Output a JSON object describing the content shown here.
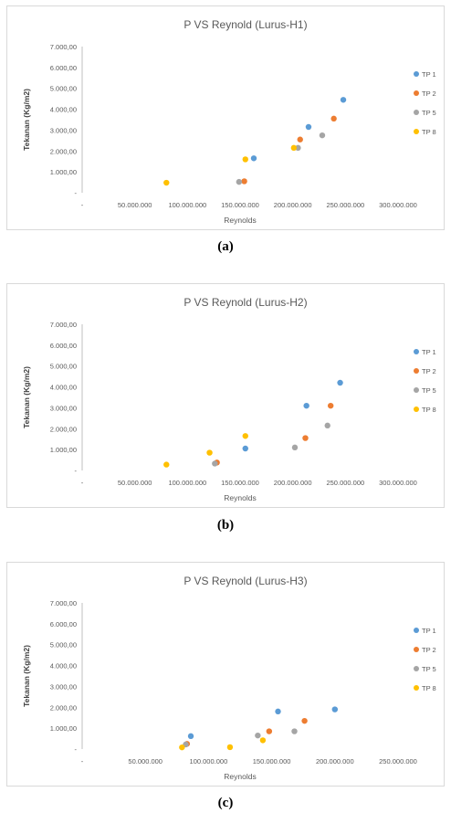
{
  "figure": {
    "captions": [
      "(a)",
      "(b)",
      "(c)"
    ]
  },
  "chart_data": [
    {
      "type": "scatter",
      "title": "P VS Reynold (Lurus-H1)",
      "xlabel": "Reynolds",
      "ylabel": "Tekanan (Kg/m2)",
      "xlim": [
        0,
        300000000
      ],
      "ylim": [
        0,
        7000
      ],
      "xticks": [
        0,
        50000000,
        100000000,
        150000000,
        200000000,
        250000000,
        300000000
      ],
      "xtick_labels": [
        "-",
        "50.000.000",
        "100.000.000",
        "150.000.000",
        "200.000.000",
        "250.000.000",
        "300.000.000"
      ],
      "yticks": [
        0,
        1000,
        2000,
        3000,
        4000,
        5000,
        6000,
        7000
      ],
      "ytick_labels": [
        "-",
        "1.000,00",
        "2.000,00",
        "3.000,00",
        "4.000,00",
        "5.000,00",
        "6.000,00",
        "7.000,00"
      ],
      "grid": false,
      "legend": "right",
      "series": [
        {
          "name": "TP 1",
          "color": "#5b9bd5",
          "points": [
            [
              163000000,
              1650
            ],
            [
              215000000,
              3150
            ],
            [
              248000000,
              4450
            ]
          ]
        },
        {
          "name": "TP 2",
          "color": "#ed7d31",
          "points": [
            [
              154000000,
              550
            ],
            [
              207000000,
              2550
            ],
            [
              239000000,
              3550
            ]
          ]
        },
        {
          "name": "TP 5",
          "color": "#a5a5a5",
          "points": [
            [
              149000000,
              520
            ],
            [
              205000000,
              2150
            ],
            [
              228000000,
              2750
            ]
          ]
        },
        {
          "name": "TP 8",
          "color": "#ffc000",
          "points": [
            [
              80000000,
              480
            ],
            [
              155000000,
              1600
            ],
            [
              201000000,
              2150
            ]
          ]
        }
      ]
    },
    {
      "type": "scatter",
      "title": "P VS Reynold (Lurus-H2)",
      "xlabel": "Reynolds",
      "ylabel": "Tekanan (Kg/m2)",
      "xlim": [
        0,
        300000000
      ],
      "ylim": [
        0,
        7000
      ],
      "xticks": [
        0,
        50000000,
        100000000,
        150000000,
        200000000,
        250000000,
        300000000
      ],
      "xtick_labels": [
        "-",
        "50.000.000",
        "100.000.000",
        "150.000.000",
        "200.000.000",
        "250.000.000",
        "300.000.000"
      ],
      "yticks": [
        0,
        1000,
        2000,
        3000,
        4000,
        5000,
        6000,
        7000
      ],
      "ytick_labels": [
        "-",
        "1.000,00",
        "2.000,00",
        "3.000,00",
        "4.000,00",
        "5.000,00",
        "6.000,00",
        "7.000,00"
      ],
      "grid": false,
      "legend": "right",
      "series": [
        {
          "name": "TP 1",
          "color": "#5b9bd5",
          "points": [
            [
              155000000,
              1050
            ],
            [
              213000000,
              3100
            ],
            [
              245000000,
              4200
            ]
          ]
        },
        {
          "name": "TP 2",
          "color": "#ed7d31",
          "points": [
            [
              128000000,
              380
            ],
            [
              212000000,
              1550
            ],
            [
              236000000,
              3100
            ]
          ]
        },
        {
          "name": "TP 5",
          "color": "#a5a5a5",
          "points": [
            [
              126000000,
              330
            ],
            [
              202000000,
              1100
            ],
            [
              233000000,
              2150
            ]
          ]
        },
        {
          "name": "TP 8",
          "color": "#ffc000",
          "points": [
            [
              80000000,
              280
            ],
            [
              121000000,
              850
            ],
            [
              155000000,
              1650
            ]
          ]
        }
      ]
    },
    {
      "type": "scatter",
      "title": "P VS Reynold (Lurus-H3)",
      "xlabel": "Reynolds",
      "ylabel": "Tekanan (Kg/m2)",
      "xlim": [
        0,
        250000000
      ],
      "ylim": [
        0,
        7000
      ],
      "xticks": [
        0,
        50000000,
        100000000,
        150000000,
        200000000,
        250000000
      ],
      "xtick_labels": [
        "-",
        "50.000.000",
        "100.000.000",
        "150.000.000",
        "200.000.000",
        "250.000.000"
      ],
      "yticks": [
        0,
        1000,
        2000,
        3000,
        4000,
        5000,
        6000,
        7000
      ],
      "ytick_labels": [
        "-",
        "1.000,00",
        "2.000,00",
        "3.000,00",
        "4.000,00",
        "5.000,00",
        "6.000,00",
        "7.000,00"
      ],
      "grid": false,
      "legend": "right",
      "series": [
        {
          "name": "TP 1",
          "color": "#5b9bd5",
          "points": [
            [
              86000000,
              620
            ],
            [
              155000000,
              1800
            ],
            [
              200000000,
              1900
            ]
          ]
        },
        {
          "name": "TP 2",
          "color": "#ed7d31",
          "points": [
            [
              83000000,
              250
            ],
            [
              148000000,
              850
            ],
            [
              176000000,
              1350
            ]
          ]
        },
        {
          "name": "TP 5",
          "color": "#a5a5a5",
          "points": [
            [
              82000000,
              220
            ],
            [
              139000000,
              650
            ],
            [
              168000000,
              850
            ]
          ]
        },
        {
          "name": "TP 8",
          "color": "#ffc000",
          "points": [
            [
              79000000,
              80
            ],
            [
              117000000,
              90
            ],
            [
              143000000,
              420
            ]
          ]
        }
      ]
    }
  ]
}
